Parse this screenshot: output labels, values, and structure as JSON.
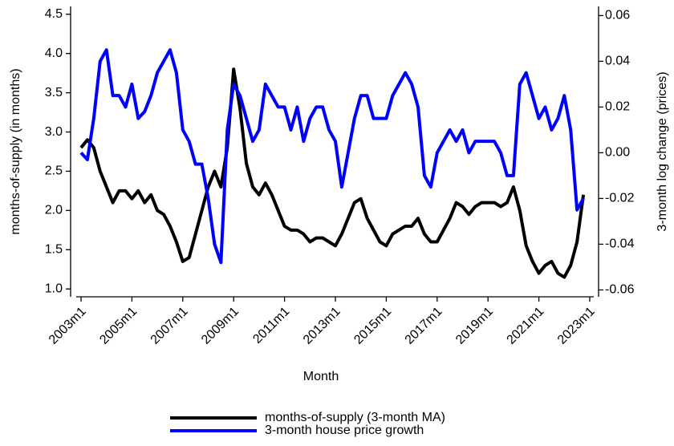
{
  "chart_data": {
    "type": "line",
    "x_label": "Month",
    "y_label": "months-of-supply (in months)",
    "y2_label": "3-month log change (prices)",
    "x": [
      "2003m1",
      "2003m4",
      "2003m7",
      "2003m10",
      "2004m1",
      "2004m4",
      "2004m7",
      "2004m10",
      "2005m1",
      "2005m4",
      "2005m7",
      "2005m10",
      "2006m1",
      "2006m4",
      "2006m7",
      "2006m10",
      "2007m1",
      "2007m4",
      "2007m7",
      "2007m10",
      "2008m1",
      "2008m4",
      "2008m7",
      "2008m10",
      "2009m1",
      "2009m4",
      "2009m7",
      "2009m10",
      "2010m1",
      "2010m4",
      "2010m7",
      "2010m10",
      "2011m1",
      "2011m4",
      "2011m7",
      "2011m10",
      "2012m1",
      "2012m4",
      "2012m7",
      "2012m10",
      "2013m1",
      "2013m4",
      "2013m7",
      "2013m10",
      "2014m1",
      "2014m4",
      "2014m7",
      "2014m10",
      "2015m1",
      "2015m4",
      "2015m7",
      "2015m10",
      "2016m1",
      "2016m4",
      "2016m7",
      "2016m10",
      "2017m1",
      "2017m4",
      "2017m7",
      "2017m10",
      "2018m1",
      "2018m4",
      "2018m7",
      "2018m10",
      "2019m1",
      "2019m4",
      "2019m7",
      "2019m10",
      "2020m1",
      "2020m4",
      "2020m7",
      "2020m10",
      "2021m1",
      "2021m4",
      "2021m7",
      "2021m10",
      "2022m1",
      "2022m4",
      "2022m7",
      "2022m10"
    ],
    "series": [
      {
        "name": "months-of-supply (3-month MA)",
        "color": "#000000",
        "axis": "y",
        "values": [
          2.8,
          2.9,
          2.8,
          2.5,
          2.3,
          2.1,
          2.25,
          2.25,
          2.15,
          2.25,
          2.1,
          2.2,
          2.0,
          1.95,
          1.8,
          1.6,
          1.35,
          1.4,
          1.7,
          2.0,
          2.3,
          2.5,
          2.3,
          2.8,
          3.8,
          3.3,
          2.6,
          2.3,
          2.2,
          2.35,
          2.2,
          2.0,
          1.8,
          1.75,
          1.75,
          1.7,
          1.6,
          1.65,
          1.65,
          1.6,
          1.55,
          1.7,
          1.9,
          2.1,
          2.15,
          1.9,
          1.75,
          1.6,
          1.55,
          1.7,
          1.75,
          1.8,
          1.8,
          1.9,
          1.7,
          1.6,
          1.6,
          1.75,
          1.9,
          2.1,
          2.05,
          1.95,
          2.05,
          2.1,
          2.1,
          2.1,
          2.05,
          2.1,
          2.3,
          2.0,
          1.55,
          1.35,
          1.2,
          1.3,
          1.35,
          1.2,
          1.15,
          1.3,
          1.6,
          2.2
        ]
      },
      {
        "name": "3-month house price growth",
        "color": "#0000ff",
        "axis": "y2",
        "values": [
          0.0,
          -0.003,
          0.015,
          0.04,
          0.045,
          0.025,
          0.025,
          0.02,
          0.03,
          0.015,
          0.018,
          0.025,
          0.035,
          0.04,
          0.045,
          0.035,
          0.01,
          0.005,
          -0.005,
          -0.005,
          -0.02,
          -0.04,
          -0.048,
          0.01,
          0.03,
          0.025,
          0.015,
          0.005,
          0.01,
          0.03,
          0.025,
          0.02,
          0.02,
          0.01,
          0.02,
          0.005,
          0.015,
          0.02,
          0.02,
          0.01,
          0.005,
          -0.015,
          0.0,
          0.015,
          0.025,
          0.025,
          0.015,
          0.015,
          0.015,
          0.025,
          0.03,
          0.035,
          0.03,
          0.02,
          -0.01,
          -0.015,
          0.0,
          0.005,
          0.01,
          0.005,
          0.01,
          0.0,
          0.005,
          0.005,
          0.005,
          0.005,
          0.0,
          -0.01,
          -0.01,
          0.03,
          0.035,
          0.025,
          0.015,
          0.02,
          0.01,
          0.015,
          0.025,
          0.01,
          -0.025,
          -0.02
        ]
      }
    ],
    "xticks": [
      "2003m1",
      "2005m1",
      "2007m1",
      "2009m1",
      "2011m1",
      "2013m1",
      "2015m1",
      "2017m1",
      "2019m1",
      "2021m1",
      "2023m1"
    ],
    "ylim": [
      0.9,
      4.6
    ],
    "yticks": [
      {
        "value": 1,
        "label": "1.0"
      },
      {
        "value": 1.5,
        "label": "1.5"
      },
      {
        "value": 2,
        "label": "2.0"
      },
      {
        "value": 2.5,
        "label": "2.5"
      },
      {
        "value": 3,
        "label": "3.0"
      },
      {
        "value": 3.5,
        "label": "3.5"
      },
      {
        "value": 4,
        "label": "4.0"
      },
      {
        "value": 4.5,
        "label": "4.5"
      }
    ],
    "y2lim": [
      -0.063,
      0.064
    ],
    "y2ticks": [
      -0.06,
      -0.04,
      -0.02,
      {
        "value": 0,
        "label": "0.00"
      },
      0.02,
      0.04,
      0.06
    ],
    "legend": "bottom"
  }
}
